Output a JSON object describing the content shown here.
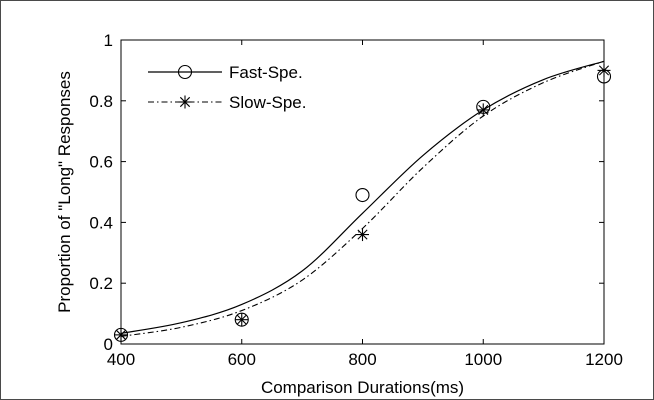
{
  "chart_data": {
    "type": "line",
    "title": "",
    "xlabel": "Comparison Durations(ms)",
    "ylabel": "Proportion of \"Long\" Responses",
    "xlim": [
      400,
      1200
    ],
    "ylim": [
      0,
      1
    ],
    "xticks": [
      "400",
      "600",
      "800",
      "1000",
      "1200"
    ],
    "yticks": [
      "0",
      "0.2",
      "0.4",
      "0.6",
      "0.8",
      "1"
    ],
    "grid": false,
    "legend_position": "top-left",
    "series": [
      {
        "name": "Fast-Spe.",
        "line_style": "solid",
        "marker": "circle",
        "points": {
          "x": [
            400,
            600,
            800,
            1000,
            1200
          ],
          "y": [
            0.03,
            0.08,
            0.49,
            0.78,
            0.88
          ]
        },
        "fit": {
          "x": [
            400,
            500,
            600,
            700,
            800,
            900,
            1000,
            1100,
            1200
          ],
          "y": [
            0.035,
            0.07,
            0.13,
            0.24,
            0.43,
            0.62,
            0.77,
            0.87,
            0.93
          ]
        }
      },
      {
        "name": "Slow-Spe.",
        "line_style": "dash-dot",
        "marker": "asterisk",
        "points": {
          "x": [
            400,
            600,
            800,
            1000,
            1200
          ],
          "y": [
            0.03,
            0.08,
            0.36,
            0.77,
            0.9
          ]
        },
        "fit": {
          "x": [
            400,
            500,
            600,
            700,
            800,
            900,
            1000,
            1100,
            1200
          ],
          "y": [
            0.025,
            0.055,
            0.11,
            0.21,
            0.38,
            0.58,
            0.75,
            0.86,
            0.93
          ]
        }
      }
    ]
  }
}
